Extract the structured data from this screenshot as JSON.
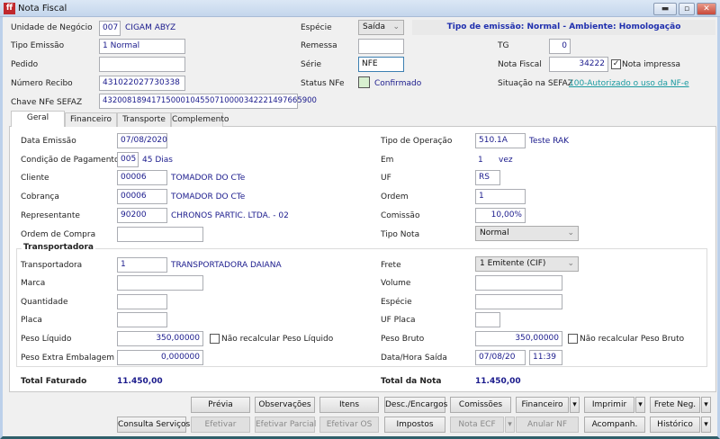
{
  "window": {
    "title": "Nota Fiscal",
    "app_icon": "cigam-logo-icon",
    "controls": [
      "minimize",
      "maximize",
      "close"
    ]
  },
  "header": {
    "unidade_label": "Unidade de Negócio",
    "unidade_code": "007",
    "unidade_name": "CIGAM ABYZ",
    "tipo_emissao_label": "Tipo Emissão",
    "tipo_emissao_value": "1 Normal",
    "pedido_label": "Pedido",
    "pedido_value": "",
    "numero_recibo_label": "Número Recibo",
    "numero_recibo_value": "431022027730338",
    "chave_label": "Chave NFe SEFAZ",
    "chave_value": "43200818941715000104550710000342221497665900",
    "especie_label": "Espécie",
    "especie_value": "Saída",
    "remessa_label": "Remessa",
    "remessa_value": "",
    "serie_label": "Série",
    "serie_value": "NFE",
    "status_label": "Status NFe",
    "status_value": "Confirmado",
    "status_color": "#d8f0d0",
    "banner": "Tipo de emissão: Normal - Ambiente: Homologação",
    "tg_label": "TG",
    "tg_value": "0",
    "nota_fiscal_label": "Nota Fiscal",
    "nota_fiscal_value": "34222",
    "nota_impressa_label": "Nota impressa",
    "nota_impressa_checked": true,
    "situacao_label": "Situação na SEFAZ",
    "situacao_value": "100-Autorizado o uso da NF-e"
  },
  "tabs": [
    {
      "label": "Geral",
      "active": true
    },
    {
      "label": "Financeiro"
    },
    {
      "label": "Transporte"
    },
    {
      "label": "Complemento"
    }
  ],
  "geral": {
    "data_emissao_label": "Data Emissão",
    "data_emissao": "07/08/2020",
    "cond_pag_label": "Condição de Pagamento",
    "cond_pag_code": "005",
    "cond_pag_desc": "45 Dias",
    "cliente_label": "Cliente",
    "cliente_code": "00006",
    "cliente_name": "TOMADOR DO CTe",
    "cobranca_label": "Cobrança",
    "cobranca_code": "00006",
    "cobranca_name": "TOMADOR DO CTe",
    "representante_label": "Representante",
    "representante_code": "90200",
    "representante_name": "CHRONOS PARTIC. LTDA. - 02",
    "ordem_compra_label": "Ordem de Compra",
    "ordem_compra": "",
    "tipo_operacao_label": "Tipo de Operação",
    "tipo_operacao": "510.1A",
    "tipo_operacao_desc": "Teste RAK",
    "em_label": "Em",
    "em_value": "1",
    "em_unit": "vez",
    "uf_label": "UF",
    "uf": "RS",
    "ordem_label": "Ordem",
    "ordem": "1",
    "comissao_label": "Comissão",
    "comissao": "10,00%",
    "tipo_nota_label": "Tipo Nota",
    "tipo_nota": "Normal"
  },
  "transportadora": {
    "group_title": "Transportadora",
    "transp_label": "Transportadora",
    "transp_code": "1",
    "transp_name": "TRANSPORTADORA DAIANA",
    "marca_label": "Marca",
    "marca": "",
    "quantidade_label": "Quantidade",
    "quantidade": "",
    "placa_label": "Placa",
    "placa": "",
    "peso_liquido_label": "Peso Líquido",
    "peso_liquido": "350,00000",
    "nao_recalc_liq": "Não recalcular Peso Líquido",
    "peso_extra_label": "Peso Extra Embalagem",
    "peso_extra": "0,000000",
    "frete_label": "Frete",
    "frete": "1 Emitente (CIF)",
    "volume_label": "Volume",
    "volume": "",
    "especie_label": "Espécie",
    "especie": "",
    "uf_placa_label": "UF Placa",
    "uf_placa": "",
    "peso_bruto_label": "Peso Bruto",
    "peso_bruto": "350,00000",
    "nao_recalc_bruto": "Não recalcular Peso Bruto",
    "data_hora_label": "Data/Hora Saída",
    "data_saida": "07/08/20",
    "hora_saida": "11:39"
  },
  "totais": {
    "faturado_label": "Total Faturado",
    "faturado": "11.450,00",
    "nota_label": "Total da Nota",
    "nota": "11.450,00"
  },
  "buttons": {
    "previa": "Prévia",
    "observacoes": "Observações",
    "itens": "Itens",
    "desc_encargos": "Desc./Encargos",
    "comissoes": "Comissões",
    "financeiro": "Financeiro",
    "imprimir": "Imprimir",
    "frete_neg": "Frete Neg.",
    "consulta_servicos": "Consulta Serviços",
    "efetivar": "Efetivar",
    "efetivar_parcial": "Efetivar Parcial",
    "efetivar_os": "Efetivar OS",
    "impostos": "Impostos",
    "nota_ecf": "Nota ECF",
    "anular_nf": "Anular NF",
    "acompanh": "Acompanh.",
    "historico": "Histórico"
  }
}
